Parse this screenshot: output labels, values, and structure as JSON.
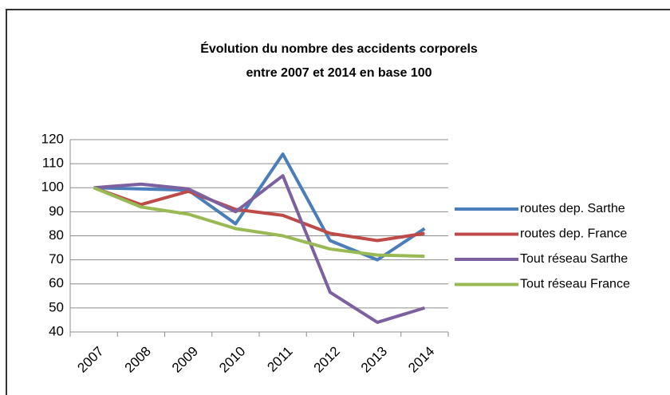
{
  "chart_data": {
    "type": "line",
    "title": [
      "Évolution du nombre des accidents corporels",
      "entre 2007 et 2014 en base 100"
    ],
    "categories": [
      "2007",
      "2008",
      "2009",
      "2010",
      "2011",
      "2012",
      "2013",
      "2014"
    ],
    "series": [
      {
        "name": "routes dep. Sarthe",
        "color": "#4a7ebb",
        "values": [
          100,
          99.5,
          99,
          85,
          114,
          78,
          70,
          83
        ]
      },
      {
        "name": "routes dep. France",
        "color": "#be4b48",
        "values": [
          100,
          93,
          98.5,
          91,
          88.5,
          81,
          78,
          81
        ]
      },
      {
        "name": "Tout réseau Sarthe",
        "color": "#7d60a0",
        "values": [
          100,
          101.5,
          99.5,
          90,
          105,
          56.5,
          44,
          50
        ]
      },
      {
        "name": "Tout réseau France",
        "color": "#98b954",
        "values": [
          100,
          92,
          89,
          83,
          80,
          74.5,
          72,
          71.5
        ]
      }
    ],
    "ylim": [
      40,
      120
    ],
    "yticks": [
      40,
      50,
      60,
      70,
      80,
      90,
      100,
      110,
      120
    ],
    "grid": true,
    "legend": "right"
  }
}
